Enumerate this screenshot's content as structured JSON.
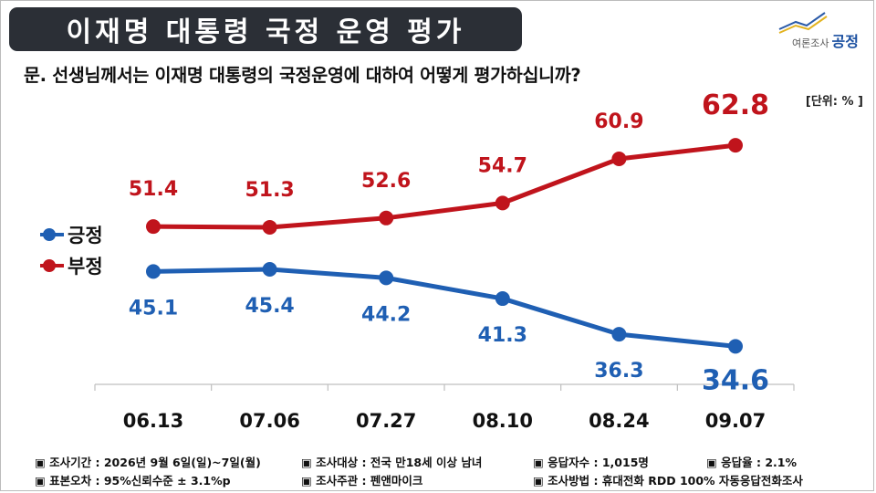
{
  "header": {
    "title": "이재명 대통령 국정 운영 평가",
    "logo_small": "여론조사",
    "logo_brand": "공정"
  },
  "question": "문. 선생님께서는 이재명 대통령의 국정운영에 대하여 어떻게 평가하십니까?",
  "unit": "[단위: % ]",
  "chart_data": {
    "type": "line",
    "categories": [
      "06.13",
      "07.06",
      "07.27",
      "08.10",
      "08.24",
      "09.07"
    ],
    "series": [
      {
        "name": "긍정",
        "color": "#1f5fb3",
        "values": [
          45.1,
          45.4,
          44.2,
          41.3,
          36.3,
          34.6
        ]
      },
      {
        "name": "부정",
        "color": "#c0141c",
        "values": [
          51.4,
          51.3,
          52.6,
          54.7,
          60.9,
          62.8
        ]
      }
    ],
    "ylabel": "",
    "xlabel": "",
    "grid": false,
    "legend_position": "left"
  },
  "footer": {
    "row1": [
      "▣ 조사기간 : 2026년 9월 6일(일)~7일(월)",
      "▣ 조사대상 : 전국 만18세 이상 남녀",
      "▣ 응답자수 : 1,015명",
      "▣ 응답율 : 2.1%"
    ],
    "row2": [
      "▣ 표본오차 : 95%신뢰수준 ± 3.1%p",
      "▣ 조사주관 : 펜앤마이크",
      "▣ 조사방법 : 휴대전화 RDD 100% 자동응답전화조사"
    ]
  }
}
